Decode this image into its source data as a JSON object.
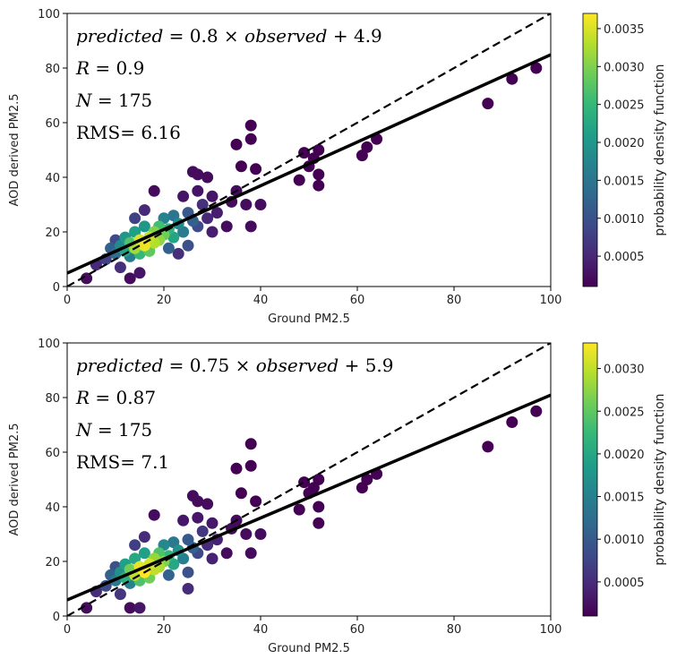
{
  "chart_data": [
    {
      "type": "scatter",
      "panel": "top",
      "xlabel": "Ground PM2.5",
      "ylabel": "AOD derived PM2.5",
      "xlim": [
        0,
        100
      ],
      "ylim": [
        0,
        100
      ],
      "xticks": [
        0,
        20,
        40,
        60,
        80,
        100
      ],
      "yticks": [
        0,
        20,
        40,
        60,
        80,
        100
      ],
      "grid": false,
      "colormap": "viridis",
      "colorbar_label": "probability density function",
      "colorbar_range": [
        0.0001,
        0.0037
      ],
      "colorbar_ticks": [
        "0.0005",
        "0.0010",
        "0.0015",
        "0.0020",
        "0.0025",
        "0.0030",
        "0.0035"
      ],
      "annotations": [
        {
          "a": "predicted",
          "b": " = 0.8 × ",
          "c": "observed",
          "d": " + 4.9"
        },
        {
          "a": "R",
          "b": " = 0.9"
        },
        {
          "a": "N",
          "b": " = 175"
        },
        {
          "a": "",
          "b": "RMS= 6.16"
        }
      ],
      "fit_line": {
        "slope": 0.8,
        "intercept": 4.9
      },
      "identity_line": {
        "slope": 1,
        "intercept": 0
      },
      "points": [
        [
          4,
          3,
          0.0002
        ],
        [
          6,
          8,
          0.0005
        ],
        [
          8,
          10,
          0.0008
        ],
        [
          9,
          14,
          0.0012
        ],
        [
          10,
          12,
          0.0014
        ],
        [
          10,
          17,
          0.0009
        ],
        [
          11,
          15,
          0.0018
        ],
        [
          12,
          13,
          0.0022
        ],
        [
          12,
          18,
          0.002
        ],
        [
          13,
          16,
          0.0027
        ],
        [
          13,
          11,
          0.0016
        ],
        [
          14,
          14,
          0.0032
        ],
        [
          14,
          20,
          0.0021
        ],
        [
          15,
          17,
          0.0035
        ],
        [
          15,
          12,
          0.0025
        ],
        [
          16,
          15,
          0.0036
        ],
        [
          16,
          22,
          0.002
        ],
        [
          17,
          18,
          0.0034
        ],
        [
          17,
          13,
          0.0028
        ],
        [
          18,
          20,
          0.003
        ],
        [
          18,
          16,
          0.0033
        ],
        [
          19,
          22,
          0.0026
        ],
        [
          19,
          17,
          0.0031
        ],
        [
          20,
          19,
          0.0029
        ],
        [
          20,
          25,
          0.0017
        ],
        [
          21,
          21,
          0.0024
        ],
        [
          22,
          18,
          0.0022
        ],
        [
          22,
          26,
          0.0015
        ],
        [
          23,
          23,
          0.0018
        ],
        [
          24,
          20,
          0.0016
        ],
        [
          25,
          27,
          0.0011
        ],
        [
          25,
          15,
          0.001
        ],
        [
          26,
          24,
          0.0012
        ],
        [
          27,
          22,
          0.0009
        ],
        [
          28,
          30,
          0.0006
        ],
        [
          29,
          25,
          0.0005
        ],
        [
          30,
          20,
          0.0004
        ],
        [
          14,
          25,
          0.0008
        ],
        [
          16,
          28,
          0.0005
        ],
        [
          18,
          35,
          0.0002
        ],
        [
          15,
          5,
          0.0003
        ],
        [
          13,
          3,
          0.0002
        ],
        [
          11,
          7,
          0.0006
        ],
        [
          21,
          14,
          0.0012
        ],
        [
          23,
          12,
          0.0006
        ],
        [
          24,
          33,
          0.0003
        ],
        [
          26,
          42,
          0.0002
        ],
        [
          27,
          41,
          0.0002
        ],
        [
          29,
          40,
          0.0002
        ],
        [
          27,
          35,
          0.0003
        ],
        [
          30,
          33,
          0.0003
        ],
        [
          31,
          27,
          0.0004
        ],
        [
          33,
          22,
          0.0002
        ],
        [
          34,
          31,
          0.0002
        ],
        [
          35,
          35,
          0.0002
        ],
        [
          35,
          52,
          0.0001
        ],
        [
          36,
          44,
          0.0001
        ],
        [
          37,
          30,
          0.0002
        ],
        [
          38,
          59,
          0.0001
        ],
        [
          38,
          54,
          0.0001
        ],
        [
          38,
          22,
          0.0002
        ],
        [
          39,
          43,
          0.0001
        ],
        [
          40,
          30,
          0.0002
        ],
        [
          49,
          49,
          0.0001
        ],
        [
          50,
          44,
          0.0001
        ],
        [
          51,
          47,
          0.0001
        ],
        [
          52,
          41,
          0.0001
        ],
        [
          52,
          37,
          0.0001
        ],
        [
          52,
          50,
          0.0001
        ],
        [
          48,
          39,
          0.0001
        ],
        [
          61,
          48,
          0.0001
        ],
        [
          62,
          51,
          0.0001
        ],
        [
          64,
          54,
          0.0001
        ],
        [
          87,
          67,
          0.0001
        ],
        [
          92,
          76,
          0.0001
        ],
        [
          97,
          80,
          0.0001
        ]
      ]
    },
    {
      "type": "scatter",
      "panel": "bottom",
      "xlabel": "Ground PM2.5",
      "ylabel": "AOD derived PM2.5",
      "xlim": [
        0,
        100
      ],
      "ylim": [
        0,
        100
      ],
      "xticks": [
        0,
        20,
        40,
        60,
        80,
        100
      ],
      "yticks": [
        0,
        20,
        40,
        60,
        80,
        100
      ],
      "grid": false,
      "colormap": "viridis",
      "colorbar_label": "probability density function",
      "colorbar_range": [
        0.0001,
        0.0033
      ],
      "colorbar_ticks": [
        "0.0005",
        "0.0010",
        "0.0015",
        "0.0020",
        "0.0025",
        "0.0030"
      ],
      "annotations": [
        {
          "a": "predicted",
          "b": " = 0.75 × ",
          "c": "observed",
          "d": " + 5.9"
        },
        {
          "a": "R",
          "b": " = 0.87"
        },
        {
          "a": "N",
          "b": " = 175"
        },
        {
          "a": "",
          "b": "RMS= 7.1"
        }
      ],
      "fit_line": {
        "slope": 0.75,
        "intercept": 5.9
      },
      "identity_line": {
        "slope": 1,
        "intercept": 0
      },
      "points": [
        [
          4,
          3,
          0.0002
        ],
        [
          6,
          9,
          0.0005
        ],
        [
          8,
          11,
          0.0008
        ],
        [
          9,
          15,
          0.0011
        ],
        [
          10,
          13,
          0.0014
        ],
        [
          10,
          18,
          0.0009
        ],
        [
          11,
          16,
          0.0017
        ],
        [
          12,
          14,
          0.0021
        ],
        [
          12,
          19,
          0.0019
        ],
        [
          13,
          17,
          0.0026
        ],
        [
          13,
          12,
          0.0015
        ],
        [
          14,
          15,
          0.003
        ],
        [
          14,
          21,
          0.002
        ],
        [
          15,
          18,
          0.0032
        ],
        [
          15,
          13,
          0.0024
        ],
        [
          16,
          16,
          0.0033
        ],
        [
          16,
          23,
          0.0019
        ],
        [
          17,
          19,
          0.0031
        ],
        [
          17,
          14,
          0.0026
        ],
        [
          18,
          21,
          0.0028
        ],
        [
          18,
          17,
          0.003
        ],
        [
          19,
          23,
          0.0024
        ],
        [
          19,
          18,
          0.0029
        ],
        [
          20,
          20,
          0.0027
        ],
        [
          20,
          26,
          0.0016
        ],
        [
          21,
          22,
          0.0022
        ],
        [
          22,
          19,
          0.002
        ],
        [
          22,
          27,
          0.0014
        ],
        [
          23,
          24,
          0.0017
        ],
        [
          24,
          21,
          0.0015
        ],
        [
          25,
          28,
          0.001
        ],
        [
          25,
          16,
          0.0009
        ],
        [
          26,
          25,
          0.0011
        ],
        [
          27,
          23,
          0.0008
        ],
        [
          28,
          31,
          0.0006
        ],
        [
          29,
          26,
          0.0005
        ],
        [
          30,
          21,
          0.0004
        ],
        [
          14,
          26,
          0.0007
        ],
        [
          16,
          29,
          0.0005
        ],
        [
          18,
          37,
          0.0002
        ],
        [
          15,
          3,
          0.0003
        ],
        [
          13,
          3,
          0.0002
        ],
        [
          11,
          8,
          0.0006
        ],
        [
          21,
          15,
          0.0011
        ],
        [
          25,
          10,
          0.0005
        ],
        [
          24,
          35,
          0.0003
        ],
        [
          26,
          44,
          0.0002
        ],
        [
          27,
          42,
          0.0002
        ],
        [
          29,
          41,
          0.0002
        ],
        [
          27,
          36,
          0.0003
        ],
        [
          30,
          34,
          0.0003
        ],
        [
          31,
          28,
          0.0004
        ],
        [
          33,
          23,
          0.0002
        ],
        [
          34,
          32,
          0.0002
        ],
        [
          35,
          35,
          0.0002
        ],
        [
          35,
          54,
          0.0001
        ],
        [
          36,
          45,
          0.0001
        ],
        [
          37,
          30,
          0.0002
        ],
        [
          38,
          63,
          0.0001
        ],
        [
          38,
          55,
          0.0001
        ],
        [
          38,
          23,
          0.0002
        ],
        [
          39,
          42,
          0.0001
        ],
        [
          40,
          30,
          0.0002
        ],
        [
          49,
          49,
          0.0001
        ],
        [
          50,
          45,
          0.0001
        ],
        [
          51,
          47,
          0.0001
        ],
        [
          52,
          40,
          0.0001
        ],
        [
          52,
          34,
          0.0001
        ],
        [
          52,
          50,
          0.0001
        ],
        [
          48,
          39,
          0.0001
        ],
        [
          61,
          47,
          0.0001
        ],
        [
          62,
          50,
          0.0001
        ],
        [
          64,
          52,
          0.0001
        ],
        [
          87,
          62,
          0.0001
        ],
        [
          92,
          71,
          0.0001
        ],
        [
          97,
          75,
          0.0001
        ]
      ]
    }
  ]
}
